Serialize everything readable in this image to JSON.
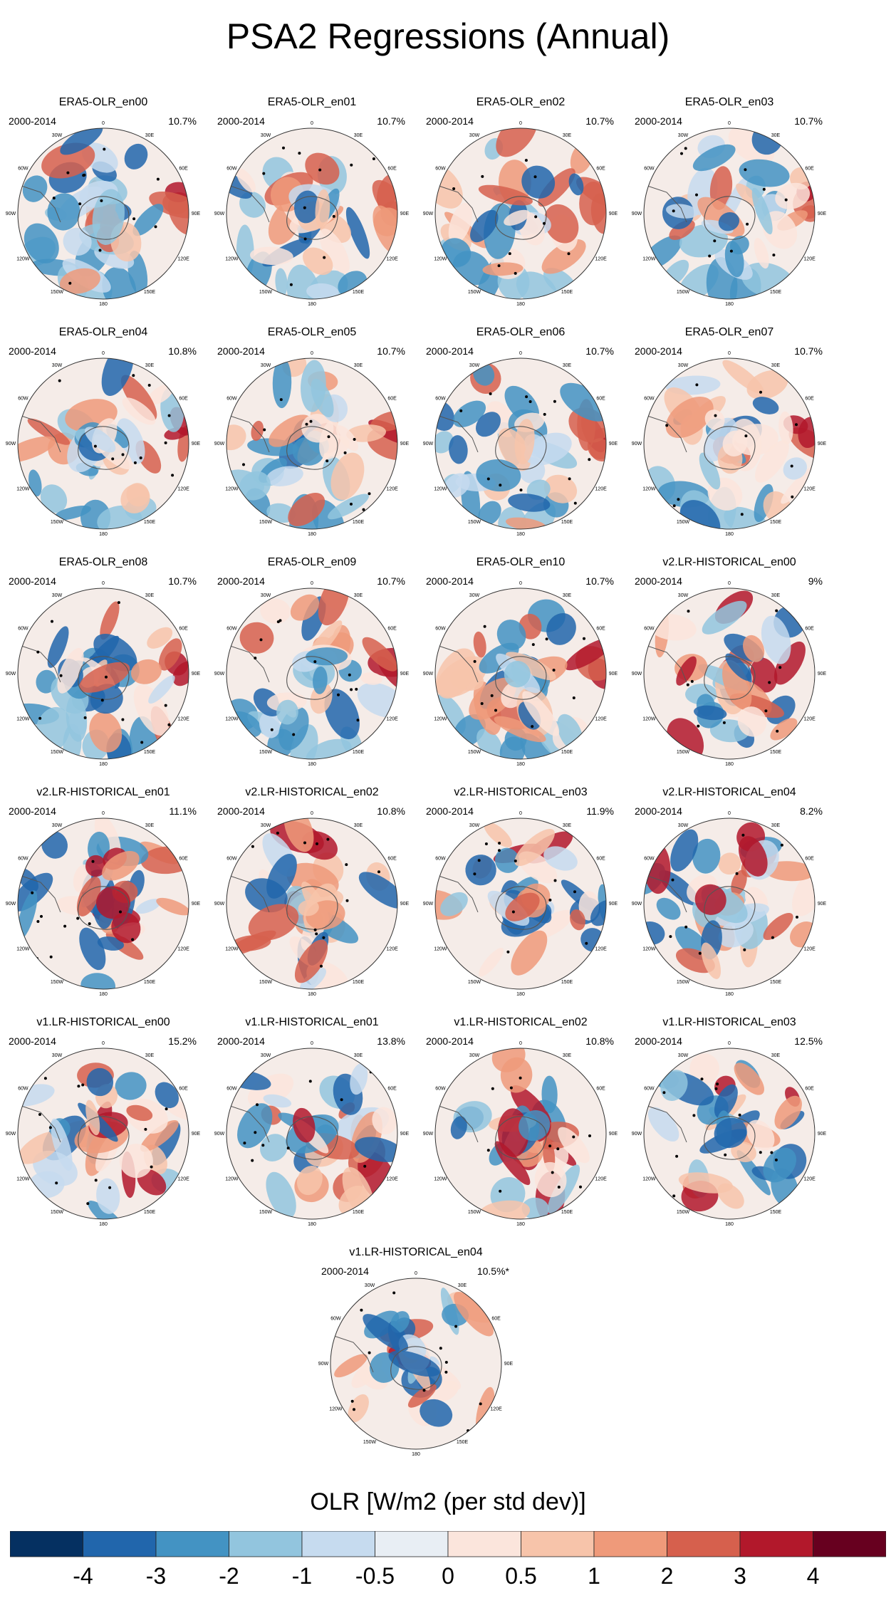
{
  "title": "PSA2 Regressions (Annual)",
  "chart_data": {
    "type": "heatmap",
    "title": "PSA2 Regressions (Annual)",
    "projection": "South polar stereographic",
    "period": "2000-2014",
    "panels": [
      {
        "name": "ERA5-OLR_en00",
        "period": "2000-2014",
        "variance": "10.7%"
      },
      {
        "name": "ERA5-OLR_en01",
        "period": "2000-2014",
        "variance": "10.7%"
      },
      {
        "name": "ERA5-OLR_en02",
        "period": "2000-2014",
        "variance": "10.7%"
      },
      {
        "name": "ERA5-OLR_en03",
        "period": "2000-2014",
        "variance": "10.7%"
      },
      {
        "name": "ERA5-OLR_en04",
        "period": "2000-2014",
        "variance": "10.8%"
      },
      {
        "name": "ERA5-OLR_en05",
        "period": "2000-2014",
        "variance": "10.7%"
      },
      {
        "name": "ERA5-OLR_en06",
        "period": "2000-2014",
        "variance": "10.7%"
      },
      {
        "name": "ERA5-OLR_en07",
        "period": "2000-2014",
        "variance": "10.7%"
      },
      {
        "name": "ERA5-OLR_en08",
        "period": "2000-2014",
        "variance": "10.7%"
      },
      {
        "name": "ERA5-OLR_en09",
        "period": "2000-2014",
        "variance": "10.7%"
      },
      {
        "name": "ERA5-OLR_en10",
        "period": "2000-2014",
        "variance": "10.7%"
      },
      {
        "name": "v2.LR-HISTORICAL_en00",
        "period": "2000-2014",
        "variance": "9%"
      },
      {
        "name": "v2.LR-HISTORICAL_en01",
        "period": "2000-2014",
        "variance": "11.1%"
      },
      {
        "name": "v2.LR-HISTORICAL_en02",
        "period": "2000-2014",
        "variance": "10.8%"
      },
      {
        "name": "v2.LR-HISTORICAL_en03",
        "period": "2000-2014",
        "variance": "11.9%"
      },
      {
        "name": "v2.LR-HISTORICAL_en04",
        "period": "2000-2014",
        "variance": "8.2%"
      },
      {
        "name": "v1.LR-HISTORICAL_en00",
        "period": "2000-2014",
        "variance": "15.2%"
      },
      {
        "name": "v1.LR-HISTORICAL_en01",
        "period": "2000-2014",
        "variance": "13.8%"
      },
      {
        "name": "v1.LR-HISTORICAL_en02",
        "period": "2000-2014",
        "variance": "10.8%"
      },
      {
        "name": "v1.LR-HISTORICAL_en03",
        "period": "2000-2014",
        "variance": "12.5%"
      },
      {
        "name": "v1.LR-HISTORICAL_en04",
        "period": "2000-2014",
        "variance": "10.5%*"
      }
    ],
    "lon_labels": [
      "0",
      "30E",
      "60E",
      "90E",
      "120E",
      "150E",
      "180",
      "150W",
      "120W",
      "90W",
      "60W",
      "30W"
    ],
    "colorbar": {
      "title": "OLR [W/m2 (per std dev)]",
      "tick_labels": [
        "-4",
        "-3",
        "-2",
        "-1",
        "-0.5",
        "0",
        "0.5",
        "1",
        "2",
        "3",
        "4"
      ],
      "colors": [
        "#053061",
        "#2166ac",
        "#4393c3",
        "#92c5de",
        "#c6dbef",
        "#e8eef4",
        "#fbe5dc",
        "#f7c4aa",
        "#ef9a7a",
        "#d6604d",
        "#b2182b",
        "#67001f"
      ]
    }
  }
}
